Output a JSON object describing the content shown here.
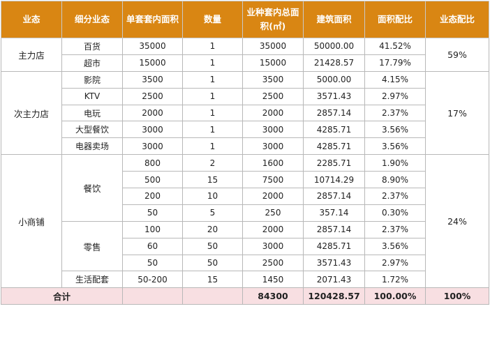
{
  "table": {
    "headers": {
      "h1": "业态",
      "h2": "细分业态",
      "h3": "单套套内面积",
      "h4": "数量",
      "h5": "业种套内总面积(㎡)",
      "h6": "建筑面积",
      "h7": "面积配比",
      "h8": "业态配比"
    },
    "groups": {
      "g1": {
        "name": "主力店",
        "ratio": "59%"
      },
      "g2": {
        "name": "次主力店",
        "ratio": "17%"
      },
      "g3": {
        "name": "小商铺",
        "ratio": "24%"
      }
    },
    "subs": {
      "catering": "餐饮",
      "retail": "零售"
    },
    "rows": [
      {
        "sub": "百货",
        "unit_area": "35000",
        "qty": "1",
        "total_area": "35000",
        "gross_area": "50000.00",
        "ratio": "41.52%"
      },
      {
        "sub": "超市",
        "unit_area": "15000",
        "qty": "1",
        "total_area": "15000",
        "gross_area": "21428.57",
        "ratio": "17.79%"
      },
      {
        "sub": "影院",
        "unit_area": "3500",
        "qty": "1",
        "total_area": "3500",
        "gross_area": "5000.00",
        "ratio": "4.15%"
      },
      {
        "sub": "KTV",
        "unit_area": "2500",
        "qty": "1",
        "total_area": "2500",
        "gross_area": "3571.43",
        "ratio": "2.97%"
      },
      {
        "sub": "电玩",
        "unit_area": "2000",
        "qty": "1",
        "total_area": "2000",
        "gross_area": "2857.14",
        "ratio": "2.37%"
      },
      {
        "sub": "大型餐饮",
        "unit_area": "3000",
        "qty": "1",
        "total_area": "3000",
        "gross_area": "4285.71",
        "ratio": "3.56%"
      },
      {
        "sub": "电器卖场",
        "unit_area": "3000",
        "qty": "1",
        "total_area": "3000",
        "gross_area": "4285.71",
        "ratio": "3.56%"
      },
      {
        "sub": "餐饮",
        "unit_area": "800",
        "qty": "2",
        "total_area": "1600",
        "gross_area": "2285.71",
        "ratio": "1.90%"
      },
      {
        "sub": "餐饮",
        "unit_area": "500",
        "qty": "15",
        "total_area": "7500",
        "gross_area": "10714.29",
        "ratio": "8.90%"
      },
      {
        "sub": "餐饮",
        "unit_area": "200",
        "qty": "10",
        "total_area": "2000",
        "gross_area": "2857.14",
        "ratio": "2.37%"
      },
      {
        "sub": "餐饮",
        "unit_area": "50",
        "qty": "5",
        "total_area": "250",
        "gross_area": "357.14",
        "ratio": "0.30%"
      },
      {
        "sub": "零售",
        "unit_area": "100",
        "qty": "20",
        "total_area": "2000",
        "gross_area": "2857.14",
        "ratio": "2.37%"
      },
      {
        "sub": "零售",
        "unit_area": "60",
        "qty": "50",
        "total_area": "3000",
        "gross_area": "4285.71",
        "ratio": "3.56%"
      },
      {
        "sub": "零售",
        "unit_area": "50",
        "qty": "50",
        "total_area": "2500",
        "gross_area": "3571.43",
        "ratio": "2.97%"
      },
      {
        "sub": "生活配套",
        "unit_area": "50-200",
        "qty": "15",
        "total_area": "1450",
        "gross_area": "2071.43",
        "ratio": "1.72%"
      }
    ],
    "total": {
      "label": "合计",
      "total_area": "84300",
      "gross_area": "120428.57",
      "ratio": "100.00%",
      "group_ratio": "100%"
    }
  }
}
